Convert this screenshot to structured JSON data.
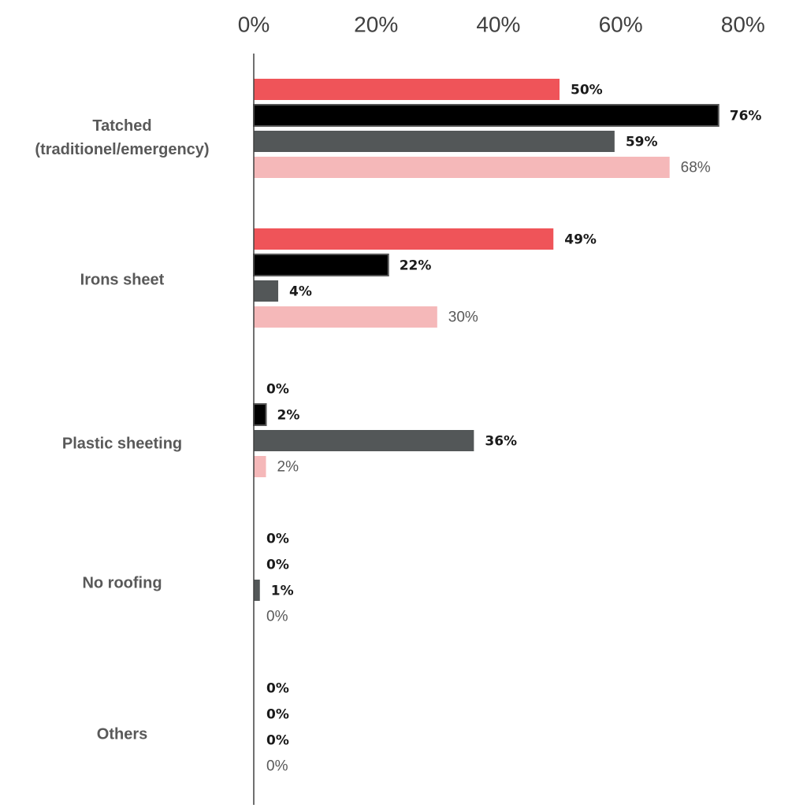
{
  "chart_data": {
    "type": "bar",
    "orientation": "horizontal",
    "categories": [
      "Tatched (traditionel/emergency)",
      "Irons sheet",
      "Plastic sheeting",
      "No roofing",
      "Others"
    ],
    "series": [
      {
        "color": "#ef5459",
        "values": [
          50,
          49,
          0,
          0,
          0
        ],
        "labels": [
          "50%",
          "49%",
          "0%",
          "0%",
          "0%"
        ]
      },
      {
        "color": "#000000",
        "values": [
          76,
          22,
          2,
          0,
          0
        ],
        "labels": [
          "76%",
          "22%",
          "2%",
          "0%",
          "0%"
        ]
      },
      {
        "color": "#535758",
        "values": [
          59,
          4,
          36,
          1,
          0
        ],
        "labels": [
          "59%",
          "4%",
          "36%",
          "1%",
          "0%"
        ]
      },
      {
        "color": "#f5b8b9",
        "values": [
          68,
          30,
          2,
          0,
          0
        ],
        "labels": [
          "68%",
          "30%",
          "2%",
          "0%",
          "0%"
        ]
      }
    ],
    "xlim": [
      0,
      80
    ],
    "xticks": [
      "0%",
      "20%",
      "40%",
      "60%",
      "80%"
    ],
    "xaxis_position": "top",
    "grid": false,
    "legend": "none",
    "xlabel": "",
    "ylabel": ""
  }
}
